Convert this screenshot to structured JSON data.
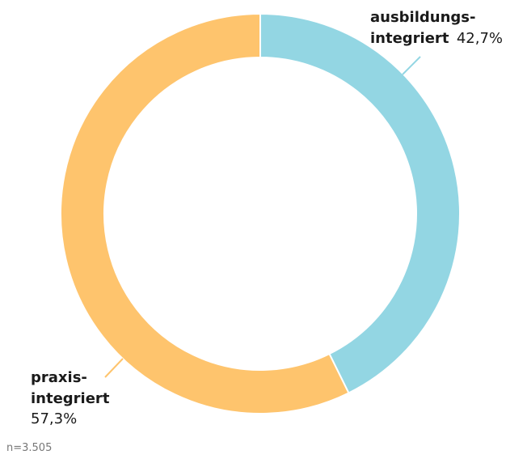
{
  "chart_data": {
    "type": "donut",
    "series": [
      {
        "name": [
          "ausbildungs-",
          "integriert"
        ],
        "color": "#93d6e3",
        "values": [
          42.7
        ],
        "value_labels": [
          "42,7%"
        ]
      },
      {
        "name": [
          "praxis-",
          "integriert"
        ],
        "color": "#fec46d",
        "values": [
          57.3
        ],
        "value_labels": [
          "57,3%"
        ]
      }
    ],
    "note": "n=3.505"
  }
}
